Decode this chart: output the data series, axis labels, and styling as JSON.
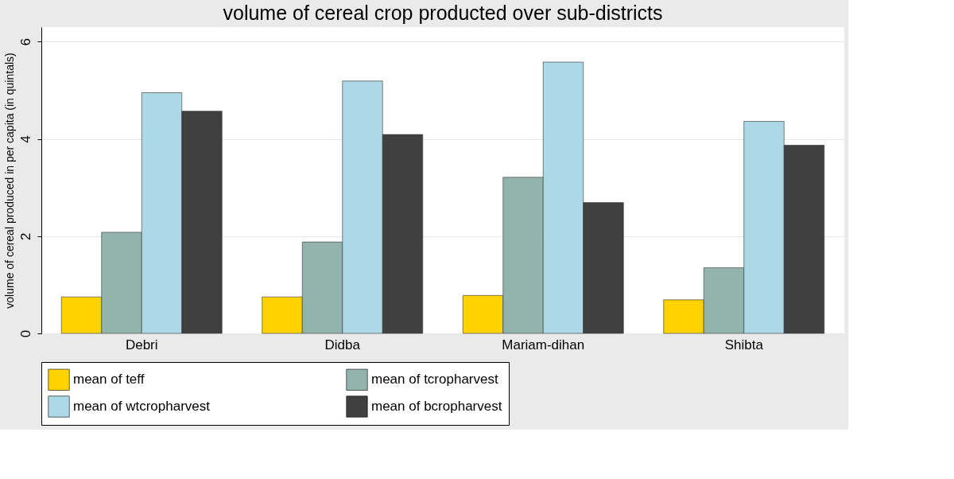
{
  "chart_data": {
    "type": "bar",
    "title": "volume of cereal crop producted over sub-districts",
    "ylabel": "volume of cereal produced in per capita (in quintals)",
    "categories": [
      "Debri",
      "Didba",
      "Mariam-dihan",
      "Shibta"
    ],
    "series": [
      {
        "name": "mean of teff",
        "color": "#ffd200",
        "values": [
          0.75,
          0.75,
          0.78,
          0.69
        ]
      },
      {
        "name": "mean of tcropharvest",
        "color": "#93b4ad",
        "values": [
          2.08,
          1.88,
          3.21,
          1.35
        ]
      },
      {
        "name": "mean of wtcropharvest",
        "color": "#add8e6",
        "values": [
          4.95,
          5.19,
          5.58,
          4.36
        ]
      },
      {
        "name": "mean of bcropharvest",
        "color": "#404040",
        "values": [
          4.57,
          4.09,
          2.69,
          3.87
        ]
      }
    ],
    "ylim": [
      0,
      6.3
    ],
    "yticks": [
      0,
      2,
      4,
      6
    ],
    "grid": "y",
    "legend": "bottom"
  }
}
